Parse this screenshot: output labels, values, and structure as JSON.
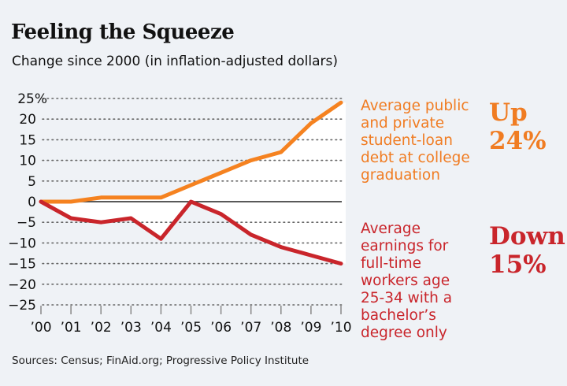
{
  "header": {
    "title": "Feeling the Squeeze",
    "subtitle": "Change since 2000 (in inflation-adjusted dollars)"
  },
  "annotations": {
    "orange_description": [
      "Average public",
      "and private",
      "student-loan",
      "debt at college",
      "graduation"
    ],
    "orange_headline": [
      "Up",
      "24%"
    ],
    "red_description": [
      "Average",
      "earnings for",
      "full-time",
      "workers age",
      "25-34 with a",
      "bachelor’s",
      "degree only"
    ],
    "red_headline": [
      "Down",
      "15%"
    ]
  },
  "footer": {
    "source": "Sources: Census; FinAid.org; Progressive Policy Institute"
  },
  "colors": {
    "orange": "#f58220",
    "red": "#c9252b",
    "background": "#eff2f6"
  },
  "chart_data": {
    "type": "line",
    "title": "Feeling the Squeeze",
    "subtitle": "Change since 2000 (in inflation-adjusted dollars)",
    "xlabel": "",
    "ylabel": "",
    "x": [
      "’00",
      "’01",
      "’02",
      "’03",
      "’04",
      "’05",
      "’06",
      "’07",
      "’08",
      "’09",
      "’10"
    ],
    "ylim": [
      -25,
      25
    ],
    "yticks": [
      25,
      20,
      15,
      10,
      5,
      0,
      -5,
      -10,
      -15,
      -20,
      -25
    ],
    "ytick_labels": [
      "25%",
      "20",
      "15",
      "10",
      "5",
      "0",
      "−5",
      "−10",
      "−15",
      "−20",
      "−25"
    ],
    "grid": true,
    "series": [
      {
        "name": "Average public and private student-loan debt at college graduation",
        "color": "#f58220",
        "values": [
          0,
          0,
          1,
          1,
          1,
          4,
          7,
          10,
          12,
          19,
          24
        ]
      },
      {
        "name": "Average earnings for full-time workers age 25-34 with a bachelor's degree only",
        "color": "#c9252b",
        "values": [
          0,
          -4,
          -5,
          -4,
          -9,
          0,
          -3,
          -8,
          -11,
          -13,
          -15
        ]
      }
    ]
  }
}
